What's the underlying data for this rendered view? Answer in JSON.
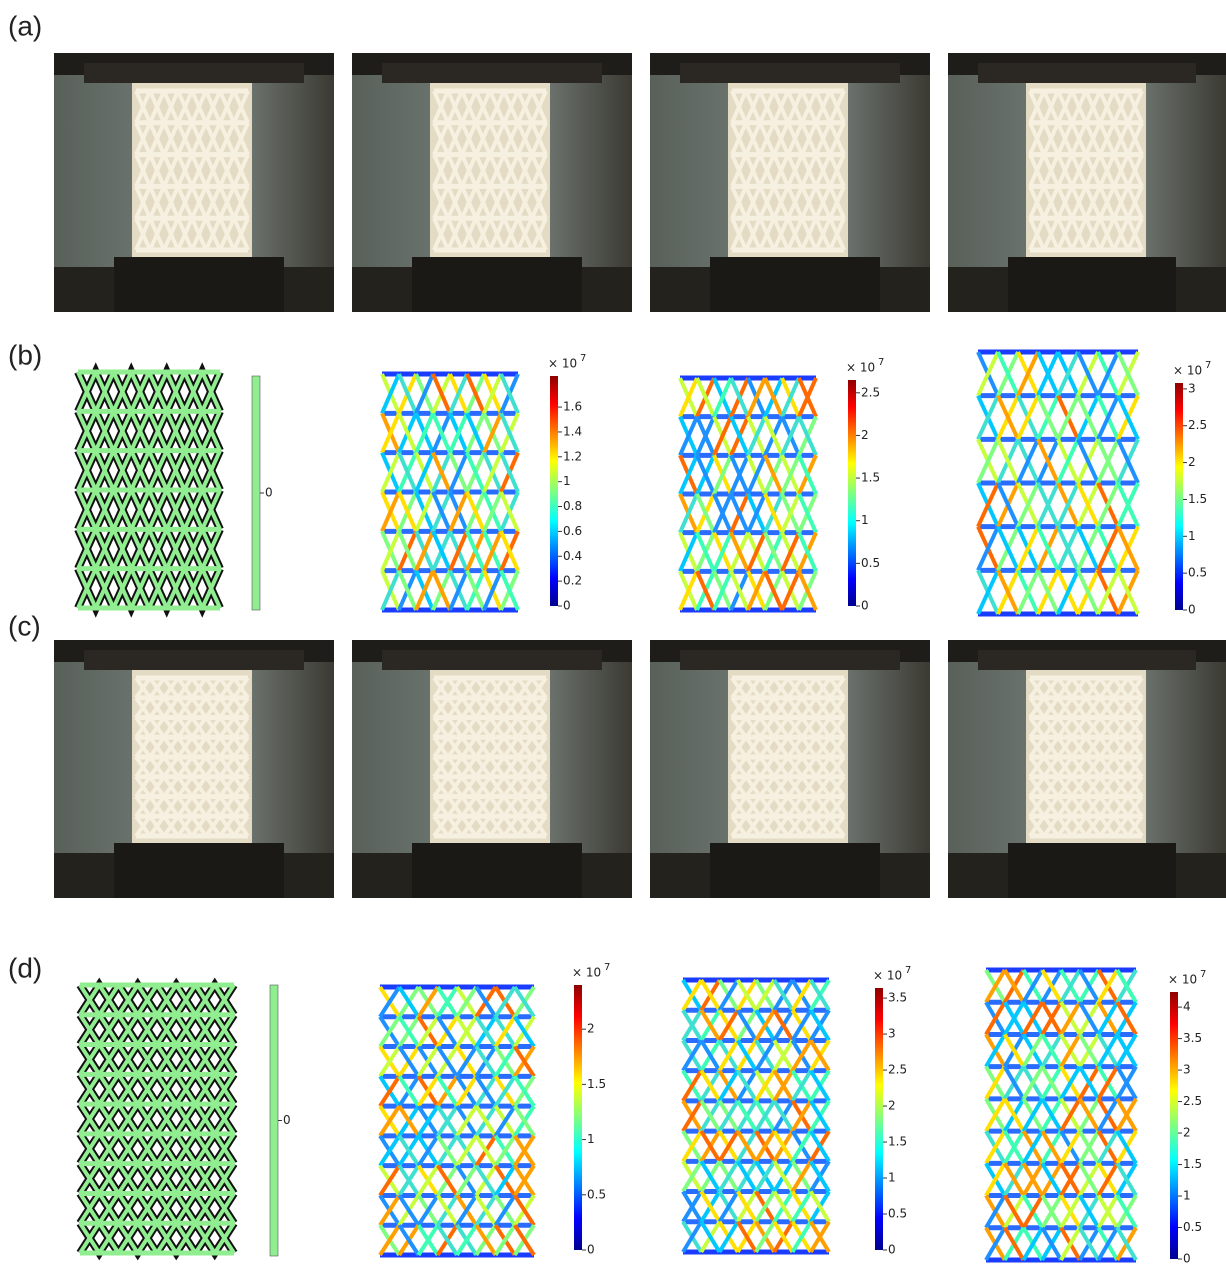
{
  "panels": [
    {
      "label": "(a)"
    },
    {
      "label": "(b)",
      "colorbars": [
        {
          "ticks": [
            0
          ],
          "range": [
            -1,
            1
          ]
        },
        {
          "multiplier": "× 10",
          "exponent": "7",
          "ticks": [
            0,
            0.2,
            0.4,
            0.6,
            0.8,
            1,
            1.2,
            1.4,
            1.6
          ],
          "range": [
            0,
            1.85
          ]
        },
        {
          "multiplier": "× 10",
          "exponent": "7",
          "ticks": [
            0,
            0.5,
            1,
            1.5,
            2,
            2.5
          ],
          "range": [
            0,
            2.65
          ]
        },
        {
          "multiplier": "× 10",
          "exponent": "7",
          "ticks": [
            0,
            0.5,
            1,
            1.5,
            2,
            2.5,
            3
          ],
          "range": [
            0,
            3.08
          ]
        }
      ]
    },
    {
      "label": "(c)"
    },
    {
      "label": "(d)",
      "colorbars": [
        {
          "ticks": [
            0
          ],
          "range": [
            -1,
            1
          ]
        },
        {
          "multiplier": "× 10",
          "exponent": "7",
          "ticks": [
            0,
            0.5,
            1,
            1.5,
            2
          ],
          "range": [
            0,
            2.4
          ]
        },
        {
          "multiplier": "× 10",
          "exponent": "7",
          "ticks": [
            0,
            0.5,
            1,
            1.5,
            2,
            2.5,
            3,
            3.5
          ],
          "range": [
            0,
            3.64
          ]
        },
        {
          "multiplier": "× 10",
          "exponent": "7",
          "ticks": [
            0,
            0.5,
            1,
            1.5,
            2,
            2.5,
            3,
            3.5,
            4
          ],
          "range": [
            0,
            4.24
          ]
        }
      ]
    }
  ]
}
